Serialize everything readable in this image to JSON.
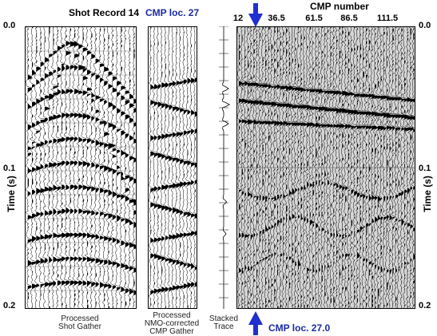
{
  "titles": {
    "shot_record": "Shot Record 14",
    "cmp_loc_top": "CMP loc. 27",
    "cmp_number": "CMP number",
    "cmp_loc_bottom": "CMP loc. 27.0"
  },
  "time_axis": {
    "label": "Time (s)",
    "left_ticks": [
      "0.0",
      "0.1",
      "0.2"
    ],
    "right_ticks": [
      "0.0",
      "0.1",
      "0.2"
    ]
  },
  "cmp_axis": {
    "ticks": [
      "12",
      "36.5",
      "61.5",
      "86.5",
      "111.5"
    ]
  },
  "captions": {
    "shot_gather": [
      "Processed",
      "Shot Gather"
    ],
    "cmp_gather": [
      "Processed",
      "NMO-corrected",
      "CMP Gather"
    ],
    "stacked_trace": [
      "Stacked",
      "Trace"
    ]
  },
  "colors": {
    "accent_blue": "#1a2a9e",
    "arrow_blue": "#1f2fd0",
    "trace": "#000000"
  },
  "icons": {
    "top_marker": "arrow-down-icon",
    "bottom_marker": "arrow-up-icon"
  }
}
